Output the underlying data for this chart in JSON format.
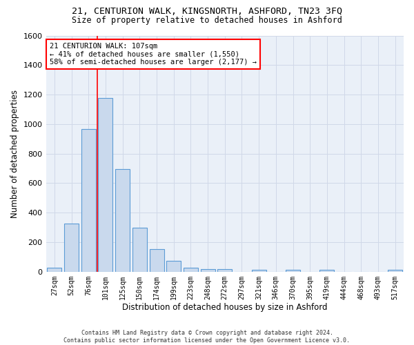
{
  "title1": "21, CENTURION WALK, KINGSNORTH, ASHFORD, TN23 3FQ",
  "title2": "Size of property relative to detached houses in Ashford",
  "xlabel": "Distribution of detached houses by size in Ashford",
  "ylabel": "Number of detached properties",
  "bar_color": "#c9d9ed",
  "bar_edge_color": "#5b9bd5",
  "categories": [
    "27sqm",
    "52sqm",
    "76sqm",
    "101sqm",
    "125sqm",
    "150sqm",
    "174sqm",
    "199sqm",
    "223sqm",
    "248sqm",
    "272sqm",
    "297sqm",
    "321sqm",
    "346sqm",
    "370sqm",
    "395sqm",
    "419sqm",
    "444sqm",
    "468sqm",
    "493sqm",
    "517sqm"
  ],
  "values": [
    25,
    325,
    965,
    1175,
    695,
    300,
    155,
    75,
    25,
    18,
    18,
    0,
    12,
    0,
    12,
    0,
    12,
    0,
    0,
    0,
    12
  ],
  "ylim": [
    0,
    1600
  ],
  "yticks": [
    0,
    200,
    400,
    600,
    800,
    1000,
    1200,
    1400,
    1600
  ],
  "property_bin_index": 3,
  "red_line_x": 2.5,
  "annotation_text": "21 CENTURION WALK: 107sqm\n← 41% of detached houses are smaller (1,550)\n58% of semi-detached houses are larger (2,177) →",
  "footnote": "Contains HM Land Registry data © Crown copyright and database right 2024.\nContains public sector information licensed under the Open Government Licence v3.0.",
  "grid_color": "#d0d8e8",
  "background_color": "#eaf0f8"
}
